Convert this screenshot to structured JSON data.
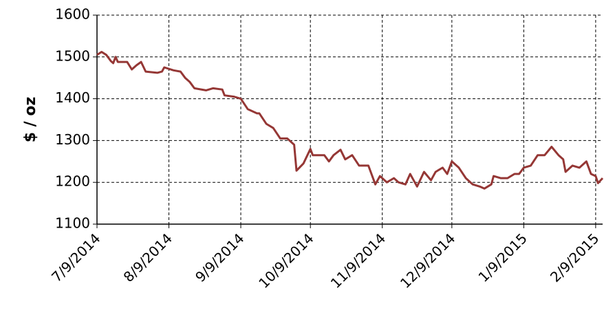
{
  "chart_data": {
    "type": "line",
    "ylabel": "$ / oz",
    "color": "#953735",
    "grid": true,
    "x": [
      "2014-07-09",
      "2014-07-11",
      "2014-07-13",
      "2014-07-15",
      "2014-07-16",
      "2014-07-17",
      "2014-07-18",
      "2014-07-22",
      "2014-07-24",
      "2014-07-26",
      "2014-07-28",
      "2014-07-30",
      "2014-08-04",
      "2014-08-06",
      "2014-08-07",
      "2014-08-11",
      "2014-08-14",
      "2014-08-16",
      "2014-08-18",
      "2014-08-20",
      "2014-08-25",
      "2014-08-28",
      "2014-09-01",
      "2014-09-02",
      "2014-09-06",
      "2014-09-09",
      "2014-09-12",
      "2014-09-16",
      "2014-09-17",
      "2014-09-20",
      "2014-09-23",
      "2014-09-26",
      "2014-09-29",
      "2014-10-02",
      "2014-10-03",
      "2014-10-06",
      "2014-10-09",
      "2014-10-10",
      "2014-10-15",
      "2014-10-17",
      "2014-10-19",
      "2014-10-22",
      "2014-10-24",
      "2014-10-27",
      "2014-10-30",
      "2014-11-03",
      "2014-11-06",
      "2014-11-08",
      "2014-11-11",
      "2014-11-14",
      "2014-11-16",
      "2014-11-19",
      "2014-11-21",
      "2014-11-24",
      "2014-11-27",
      "2014-11-30",
      "2014-12-02",
      "2014-12-05",
      "2014-12-07",
      "2014-12-09",
      "2014-12-12",
      "2014-12-15",
      "2014-12-18",
      "2014-12-21",
      "2014-12-23",
      "2014-12-26",
      "2014-12-27",
      "2014-12-30",
      "2015-01-02",
      "2015-01-05",
      "2015-01-07",
      "2015-01-09",
      "2015-01-12",
      "2015-01-15",
      "2015-01-18",
      "2015-01-21",
      "2015-01-24",
      "2015-01-26",
      "2015-01-27",
      "2015-01-30",
      "2015-02-02",
      "2015-02-05",
      "2015-02-07",
      "2015-02-09",
      "2015-02-10",
      "2015-02-12"
    ],
    "values": [
      1505,
      1512,
      1505,
      1490,
      1485,
      1500,
      1488,
      1488,
      1470,
      1480,
      1488,
      1465,
      1462,
      1465,
      1475,
      1468,
      1465,
      1450,
      1440,
      1425,
      1420,
      1425,
      1422,
      1408,
      1405,
      1400,
      1375,
      1365,
      1365,
      1340,
      1330,
      1305,
      1305,
      1290,
      1228,
      1245,
      1280,
      1265,
      1265,
      1250,
      1265,
      1278,
      1255,
      1265,
      1240,
      1240,
      1195,
      1215,
      1200,
      1210,
      1200,
      1195,
      1220,
      1190,
      1225,
      1205,
      1225,
      1235,
      1220,
      1250,
      1235,
      1210,
      1195,
      1190,
      1185,
      1195,
      1215,
      1210,
      1210,
      1220,
      1220,
      1235,
      1240,
      1265,
      1265,
      1285,
      1265,
      1255,
      1225,
      1240,
      1235,
      1250,
      1220,
      1215,
      1198,
      1210
    ],
    "xlim": [
      "2014-07-09",
      "2015-02-12"
    ],
    "xticks": [
      {
        "value": "2014-07-09",
        "label": "7/9/2014"
      },
      {
        "value": "2014-08-09",
        "label": "8/9/2014"
      },
      {
        "value": "2014-09-09",
        "label": "9/9/2014"
      },
      {
        "value": "2014-10-09",
        "label": "10/9/2014"
      },
      {
        "value": "2014-11-09",
        "label": "11/9/2014"
      },
      {
        "value": "2014-12-09",
        "label": "12/9/2014"
      },
      {
        "value": "2015-01-09",
        "label": "1/9/2015"
      },
      {
        "value": "2015-02-09",
        "label": "2/9/2015"
      }
    ],
    "ylim": [
      1100,
      1600
    ],
    "yticks": [
      1100,
      1200,
      1300,
      1400,
      1500,
      1600
    ]
  }
}
